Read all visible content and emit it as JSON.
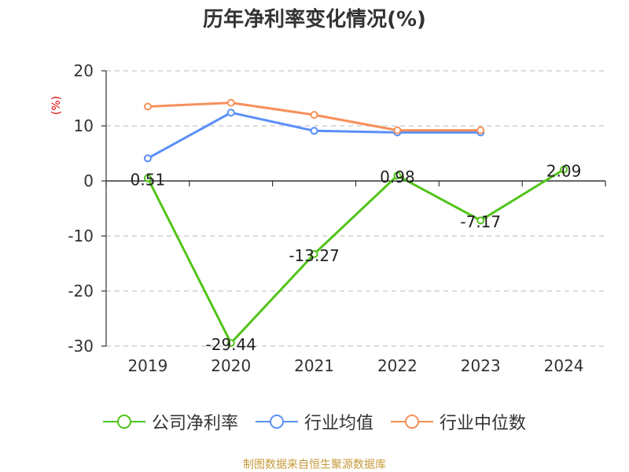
{
  "chart_data": {
    "type": "line",
    "title": "历年净利率变化情况(%)",
    "ylabel": "(%)",
    "categories": [
      "2019",
      "2020",
      "2021",
      "2022",
      "2023",
      "2024"
    ],
    "ylim": [
      -30,
      20
    ],
    "yticks": [
      20,
      10,
      0,
      -10,
      -20,
      -30
    ],
    "grid": true,
    "legend_position": "bottom",
    "series": [
      {
        "name": "公司净利率",
        "color": "#52c41a",
        "values": [
          0.51,
          -29.44,
          -13.27,
          0.98,
          -7.17,
          2.09
        ],
        "labels": [
          "0.51",
          "-29.44",
          "-13.27",
          "0.98",
          "-7.17",
          "2.09"
        ]
      },
      {
        "name": "行业均值",
        "color": "#5b8ff9",
        "values": [
          4.1,
          12.4,
          9.1,
          8.8,
          8.8,
          null
        ]
      },
      {
        "name": "行业中位数",
        "color": "#f6905a",
        "values": [
          13.5,
          14.2,
          12.0,
          9.2,
          9.2,
          null
        ]
      }
    ]
  },
  "footer": {
    "source": "制图数据来自恒生聚源数据库"
  }
}
